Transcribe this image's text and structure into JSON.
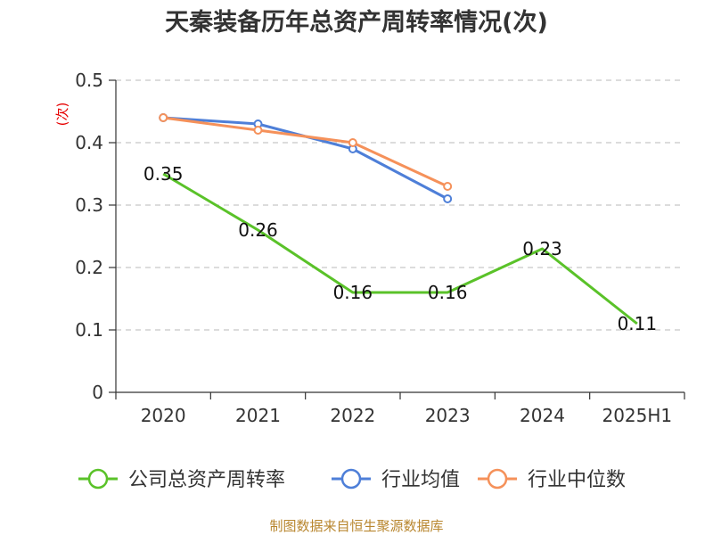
{
  "chart_data": {
    "type": "line",
    "title": "天秦装备历年总资产周转率情况(次)",
    "ylabel": "(次)",
    "categories": [
      "2020",
      "2021",
      "2022",
      "2023",
      "2024",
      "2025H1"
    ],
    "ylim": [
      0,
      0.5
    ],
    "yticks": [
      "0",
      "0.1",
      "0.2",
      "0.3",
      "0.4",
      "0.5"
    ],
    "grid": true,
    "legend_position": "bottom",
    "series": [
      {
        "name": "公司总资产周转率",
        "color": "#5ac229",
        "values": [
          0.35,
          0.26,
          0.16,
          0.16,
          0.23,
          0.11
        ],
        "labels": [
          "0.35",
          "0.26",
          "0.16",
          "0.16",
          "0.23",
          "0.11"
        ],
        "markers": false
      },
      {
        "name": "行业均值",
        "color": "#4e7fd8",
        "values": [
          0.44,
          0.43,
          0.39,
          0.31,
          null,
          null
        ],
        "markers": true
      },
      {
        "name": "行业中位数",
        "color": "#f5915a",
        "values": [
          0.44,
          0.42,
          0.4,
          0.33,
          null,
          null
        ],
        "markers": true
      }
    ]
  },
  "source": "制图数据来自恒生聚源数据库"
}
